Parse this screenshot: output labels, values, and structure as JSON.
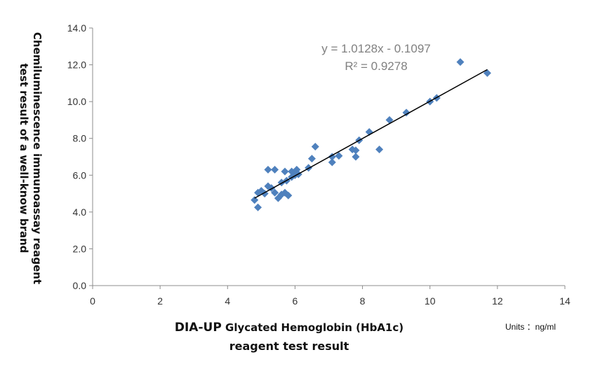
{
  "chart_data": {
    "type": "scatter",
    "title": "",
    "ylabel_lines": [
      "Chemiluminescence immunoassay reagent",
      "test result of a well-know brand"
    ],
    "xlabel_line1_bold": "DIA-UP",
    "xlabel_line1_rest": " Glycated Hemoglobin (HbA1c)",
    "xlabel_line2": "reagent test result",
    "units_label": "Units  ：ng/ml",
    "xlim": [
      0,
      14
    ],
    "ylim": [
      0,
      14
    ],
    "x_ticks": [
      0,
      2,
      4,
      6,
      8,
      10,
      12,
      14
    ],
    "x_tick_labels": [
      "0",
      "2",
      "4",
      "6",
      "8",
      "10",
      "12",
      "14"
    ],
    "y_ticks": [
      0,
      2,
      4,
      6,
      8,
      10,
      12,
      14
    ],
    "y_tick_labels": [
      "0.0",
      "2.0",
      "4.0",
      "6.0",
      "8.0",
      "10.0",
      "12.0",
      "14.0"
    ],
    "grid": false,
    "marker_color": "#4f81bd",
    "trendline_color": "#000000",
    "trendline": {
      "slope": 1.0128,
      "intercept": -0.1097,
      "x_range": [
        4.8,
        11.7
      ]
    },
    "equation_label": "y = 1.0128x - 0.1097",
    "r2_label": "R² = 0.9278",
    "points": [
      {
        "x": 4.8,
        "y": 4.65
      },
      {
        "x": 4.9,
        "y": 4.25
      },
      {
        "x": 4.9,
        "y": 5.05
      },
      {
        "x": 5.0,
        "y": 5.15
      },
      {
        "x": 5.1,
        "y": 5.0
      },
      {
        "x": 5.2,
        "y": 5.4
      },
      {
        "x": 5.2,
        "y": 6.3
      },
      {
        "x": 5.3,
        "y": 5.3
      },
      {
        "x": 5.4,
        "y": 5.05
      },
      {
        "x": 5.4,
        "y": 6.3
      },
      {
        "x": 5.5,
        "y": 4.75
      },
      {
        "x": 5.6,
        "y": 5.6
      },
      {
        "x": 5.6,
        "y": 4.95
      },
      {
        "x": 5.7,
        "y": 5.05
      },
      {
        "x": 5.7,
        "y": 6.2
      },
      {
        "x": 5.75,
        "y": 5.7
      },
      {
        "x": 5.8,
        "y": 4.9
      },
      {
        "x": 5.9,
        "y": 6.2
      },
      {
        "x": 5.9,
        "y": 5.9
      },
      {
        "x": 6.0,
        "y": 6.0
      },
      {
        "x": 6.05,
        "y": 6.3
      },
      {
        "x": 6.1,
        "y": 6.05
      },
      {
        "x": 6.4,
        "y": 6.4
      },
      {
        "x": 6.5,
        "y": 6.9
      },
      {
        "x": 6.6,
        "y": 7.55
      },
      {
        "x": 7.1,
        "y": 6.7
      },
      {
        "x": 7.1,
        "y": 7.0
      },
      {
        "x": 7.3,
        "y": 7.05
      },
      {
        "x": 7.7,
        "y": 7.4
      },
      {
        "x": 7.8,
        "y": 7.0
      },
      {
        "x": 7.8,
        "y": 7.35
      },
      {
        "x": 7.9,
        "y": 7.9
      },
      {
        "x": 8.2,
        "y": 8.35
      },
      {
        "x": 8.5,
        "y": 7.4
      },
      {
        "x": 8.8,
        "y": 9.0
      },
      {
        "x": 9.3,
        "y": 9.4
      },
      {
        "x": 10.0,
        "y": 10.0
      },
      {
        "x": 10.2,
        "y": 10.2
      },
      {
        "x": 10.9,
        "y": 12.15
      },
      {
        "x": 11.7,
        "y": 11.55
      }
    ]
  }
}
